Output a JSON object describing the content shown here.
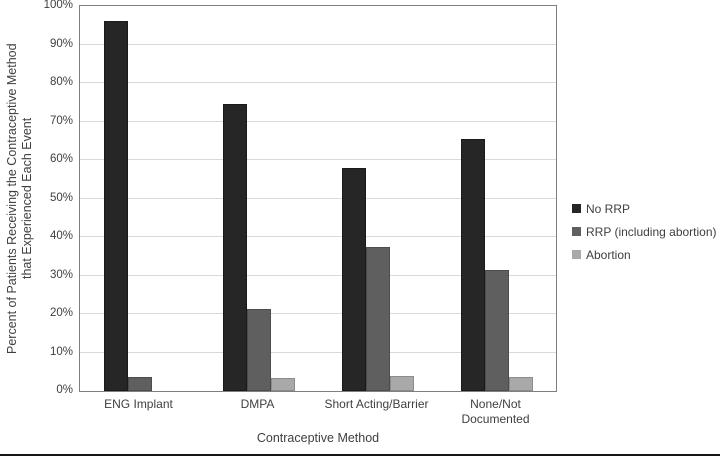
{
  "figure": {
    "background": "#ffffff",
    "bottom_rule_color": "#161616",
    "axis_text_color": "#404040"
  },
  "chart_data": {
    "type": "bar",
    "title": "",
    "xlabel": "Contraceptive Method",
    "ylabel_lines": [
      "Percent of Patients Receiving the Contraceptive Method",
      "that Experienced Each Event"
    ],
    "categories": [
      "ENG Implant",
      "DMPA",
      "Short Acting/Barrier",
      "None/Not Documented"
    ],
    "series": [
      {
        "name": "No RRP",
        "color": "#262626",
        "border_color": "#1a1a1a",
        "values": [
          96.0,
          74.5,
          58.0,
          65.4
        ]
      },
      {
        "name": "RRP (including abortion)",
        "color": "#5f5f5f",
        "border_color": "#4d4d4d",
        "values": [
          3.6,
          21.4,
          37.4,
          31.5
        ]
      },
      {
        "name": "Abortion",
        "color": "#a9a9a9",
        "border_color": "#8c8c8c",
        "values": [
          0.0,
          3.5,
          3.9,
          3.7
        ]
      }
    ],
    "ylim": [
      0,
      100
    ],
    "ytick_step": 10,
    "ytick_labels": [
      "0%",
      "10%",
      "20%",
      "30%",
      "40%",
      "50%",
      "60%",
      "70%",
      "80%",
      "90%",
      "100%"
    ],
    "grid": true,
    "gridline_color": "#d9d9d9",
    "plot_border_color": "#7f7f7f",
    "legend_position": "right",
    "legend_swatch_icon": "filled-square"
  }
}
